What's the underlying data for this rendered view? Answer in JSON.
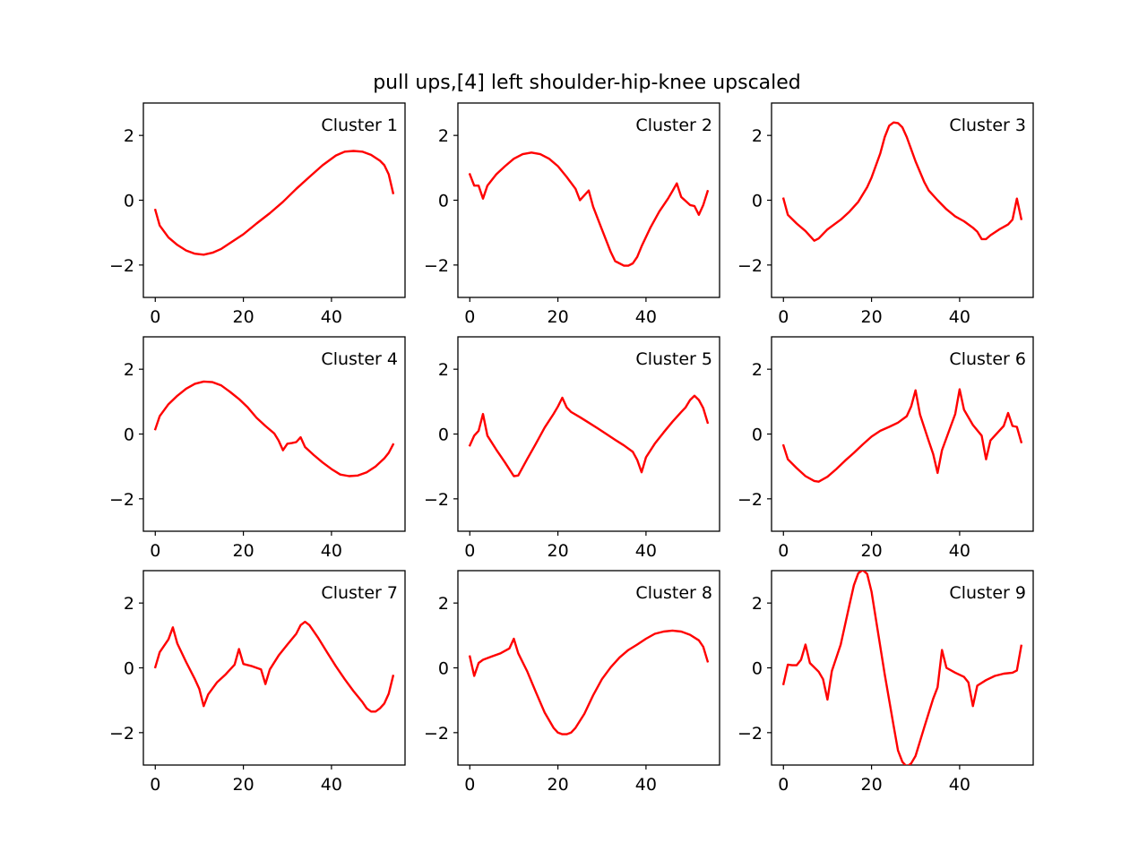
{
  "chart_data": [
    {
      "type": "line",
      "title": "pull ups,[4] left shoulder-hip-knee upscaled",
      "label": "Cluster 1",
      "color": "#ff0000",
      "xticks": [
        0,
        20,
        40
      ],
      "yticks": [
        -2,
        0,
        2
      ],
      "ytick_labels": [
        "−2",
        "0",
        "2"
      ],
      "xlim": [
        -2.7,
        56.7
      ],
      "ylim": [
        -3,
        3
      ],
      "points": [
        [
          0,
          -0.3
        ],
        [
          1,
          -0.78
        ],
        [
          3,
          -1.15
        ],
        [
          5,
          -1.38
        ],
        [
          7,
          -1.55
        ],
        [
          9,
          -1.65
        ],
        [
          11,
          -1.68
        ],
        [
          13,
          -1.62
        ],
        [
          15,
          -1.5
        ],
        [
          17,
          -1.32
        ],
        [
          20,
          -1.05
        ],
        [
          23,
          -0.72
        ],
        [
          26,
          -0.4
        ],
        [
          29,
          -0.05
        ],
        [
          32,
          0.35
        ],
        [
          35,
          0.72
        ],
        [
          38,
          1.08
        ],
        [
          41,
          1.38
        ],
        [
          43,
          1.5
        ],
        [
          45,
          1.52
        ],
        [
          47,
          1.5
        ],
        [
          49,
          1.4
        ],
        [
          51,
          1.22
        ],
        [
          52,
          1.08
        ],
        [
          53,
          0.8
        ],
        [
          54,
          0.22
        ]
      ]
    },
    {
      "type": "line",
      "label": "Cluster 2",
      "color": "#ff0000",
      "xticks": [
        0,
        20,
        40
      ],
      "yticks": [
        -2,
        0,
        2
      ],
      "ytick_labels": [
        "−2",
        "0",
        "2"
      ],
      "xlim": [
        -2.7,
        56.7
      ],
      "ylim": [
        -3,
        3
      ],
      "points": [
        [
          0,
          0.8
        ],
        [
          1,
          0.45
        ],
        [
          2,
          0.45
        ],
        [
          3,
          0.05
        ],
        [
          4,
          0.45
        ],
        [
          6,
          0.8
        ],
        [
          8,
          1.05
        ],
        [
          10,
          1.28
        ],
        [
          12,
          1.42
        ],
        [
          14,
          1.47
        ],
        [
          16,
          1.42
        ],
        [
          18,
          1.28
        ],
        [
          20,
          1.05
        ],
        [
          22,
          0.72
        ],
        [
          24,
          0.35
        ],
        [
          25,
          0.0
        ],
        [
          26,
          0.15
        ],
        [
          27,
          0.3
        ],
        [
          28,
          -0.2
        ],
        [
          30,
          -0.9
        ],
        [
          32,
          -1.6
        ],
        [
          33,
          -1.88
        ],
        [
          35,
          -2.02
        ],
        [
          36,
          -2.02
        ],
        [
          37,
          -1.95
        ],
        [
          38,
          -1.75
        ],
        [
          39,
          -1.42
        ],
        [
          41,
          -0.85
        ],
        [
          43,
          -0.35
        ],
        [
          45,
          0.05
        ],
        [
          46,
          0.28
        ],
        [
          47,
          0.52
        ],
        [
          48,
          0.1
        ],
        [
          50,
          -0.15
        ],
        [
          51,
          -0.18
        ],
        [
          52,
          -0.45
        ],
        [
          53,
          -0.15
        ],
        [
          54,
          0.28
        ]
      ]
    },
    {
      "type": "line",
      "label": "Cluster 3",
      "color": "#ff0000",
      "xticks": [
        0,
        20,
        40
      ],
      "yticks": [
        -2,
        0,
        2
      ],
      "ytick_labels": [
        "−2",
        "0",
        "2"
      ],
      "xlim": [
        -2.7,
        56.7
      ],
      "ylim": [
        -3,
        3
      ],
      "points": [
        [
          0,
          0.05
        ],
        [
          1,
          -0.45
        ],
        [
          3,
          -0.72
        ],
        [
          5,
          -0.95
        ],
        [
          7,
          -1.25
        ],
        [
          8,
          -1.18
        ],
        [
          10,
          -0.9
        ],
        [
          13,
          -0.6
        ],
        [
          15,
          -0.35
        ],
        [
          17,
          -0.05
        ],
        [
          19,
          0.4
        ],
        [
          20,
          0.7
        ],
        [
          22,
          1.45
        ],
        [
          23,
          1.95
        ],
        [
          24,
          2.3
        ],
        [
          25,
          2.4
        ],
        [
          26,
          2.38
        ],
        [
          27,
          2.25
        ],
        [
          28,
          1.95
        ],
        [
          30,
          1.2
        ],
        [
          32,
          0.55
        ],
        [
          33,
          0.3
        ],
        [
          35,
          0.0
        ],
        [
          37,
          -0.28
        ],
        [
          39,
          -0.5
        ],
        [
          41,
          -0.65
        ],
        [
          43,
          -0.85
        ],
        [
          44,
          -0.97
        ],
        [
          45,
          -1.2
        ],
        [
          46,
          -1.2
        ],
        [
          47,
          -1.08
        ],
        [
          49,
          -0.9
        ],
        [
          51,
          -0.75
        ],
        [
          52,
          -0.6
        ],
        [
          53,
          0.05
        ],
        [
          54,
          -0.58
        ]
      ]
    },
    {
      "type": "line",
      "label": "Cluster 4",
      "color": "#ff0000",
      "xticks": [
        0,
        20,
        40
      ],
      "yticks": [
        -2,
        0,
        2
      ],
      "ytick_labels": [
        "−2",
        "0",
        "2"
      ],
      "xlim": [
        -2.7,
        56.7
      ],
      "ylim": [
        -3,
        3
      ],
      "points": [
        [
          0,
          0.15
        ],
        [
          1,
          0.55
        ],
        [
          3,
          0.92
        ],
        [
          5,
          1.18
        ],
        [
          7,
          1.4
        ],
        [
          9,
          1.55
        ],
        [
          11,
          1.62
        ],
        [
          13,
          1.6
        ],
        [
          15,
          1.5
        ],
        [
          17,
          1.3
        ],
        [
          19,
          1.08
        ],
        [
          21,
          0.82
        ],
        [
          23,
          0.5
        ],
        [
          25,
          0.25
        ],
        [
          27,
          0.02
        ],
        [
          28,
          -0.2
        ],
        [
          29,
          -0.5
        ],
        [
          30,
          -0.3
        ],
        [
          31,
          -0.28
        ],
        [
          32,
          -0.25
        ],
        [
          33,
          -0.1
        ],
        [
          34,
          -0.4
        ],
        [
          36,
          -0.65
        ],
        [
          38,
          -0.88
        ],
        [
          40,
          -1.08
        ],
        [
          42,
          -1.25
        ],
        [
          44,
          -1.3
        ],
        [
          46,
          -1.28
        ],
        [
          48,
          -1.18
        ],
        [
          50,
          -1.0
        ],
        [
          52,
          -0.75
        ],
        [
          53,
          -0.58
        ],
        [
          54,
          -0.32
        ]
      ]
    },
    {
      "type": "line",
      "label": "Cluster 5",
      "color": "#ff0000",
      "xticks": [
        0,
        20,
        40
      ],
      "yticks": [
        -2,
        0,
        2
      ],
      "ytick_labels": [
        "−2",
        "0",
        "2"
      ],
      "xlim": [
        -2.7,
        56.7
      ],
      "ylim": [
        -3,
        3
      ],
      "points": [
        [
          0,
          -0.35
        ],
        [
          1,
          -0.05
        ],
        [
          2,
          0.1
        ],
        [
          3,
          0.62
        ],
        [
          4,
          -0.05
        ],
        [
          6,
          -0.48
        ],
        [
          8,
          -0.88
        ],
        [
          10,
          -1.3
        ],
        [
          11,
          -1.28
        ],
        [
          13,
          -0.78
        ],
        [
          15,
          -0.3
        ],
        [
          17,
          0.2
        ],
        [
          19,
          0.62
        ],
        [
          20,
          0.85
        ],
        [
          21,
          1.12
        ],
        [
          22,
          0.82
        ],
        [
          23,
          0.68
        ],
        [
          25,
          0.52
        ],
        [
          27,
          0.35
        ],
        [
          29,
          0.18
        ],
        [
          31,
          0.0
        ],
        [
          33,
          -0.18
        ],
        [
          35,
          -0.35
        ],
        [
          37,
          -0.55
        ],
        [
          38,
          -0.8
        ],
        [
          39,
          -1.18
        ],
        [
          40,
          -0.72
        ],
        [
          42,
          -0.3
        ],
        [
          44,
          0.05
        ],
        [
          46,
          0.38
        ],
        [
          48,
          0.68
        ],
        [
          49,
          0.82
        ],
        [
          50,
          1.05
        ],
        [
          51,
          1.18
        ],
        [
          52,
          1.05
        ],
        [
          53,
          0.8
        ],
        [
          54,
          0.35
        ]
      ]
    },
    {
      "type": "line",
      "label": "Cluster 6",
      "color": "#ff0000",
      "xticks": [
        0,
        20,
        40
      ],
      "yticks": [
        -2,
        0,
        2
      ],
      "ytick_labels": [
        "−2",
        "0",
        "2"
      ],
      "xlim": [
        -2.7,
        56.7
      ],
      "ylim": [
        -3,
        3
      ],
      "points": [
        [
          0,
          -0.35
        ],
        [
          1,
          -0.78
        ],
        [
          3,
          -1.05
        ],
        [
          5,
          -1.3
        ],
        [
          7,
          -1.45
        ],
        [
          8,
          -1.47
        ],
        [
          10,
          -1.32
        ],
        [
          12,
          -1.08
        ],
        [
          14,
          -0.82
        ],
        [
          16,
          -0.58
        ],
        [
          18,
          -0.32
        ],
        [
          20,
          -0.08
        ],
        [
          22,
          0.1
        ],
        [
          24,
          0.22
        ],
        [
          26,
          0.35
        ],
        [
          28,
          0.55
        ],
        [
          29,
          0.85
        ],
        [
          30,
          1.35
        ],
        [
          31,
          0.6
        ],
        [
          33,
          -0.22
        ],
        [
          34,
          -0.62
        ],
        [
          35,
          -1.2
        ],
        [
          36,
          -0.5
        ],
        [
          38,
          0.25
        ],
        [
          39,
          0.62
        ],
        [
          40,
          1.38
        ],
        [
          41,
          0.75
        ],
        [
          43,
          0.28
        ],
        [
          45,
          -0.05
        ],
        [
          46,
          -0.78
        ],
        [
          47,
          -0.2
        ],
        [
          49,
          0.1
        ],
        [
          50,
          0.25
        ],
        [
          51,
          0.65
        ],
        [
          52,
          0.25
        ],
        [
          53,
          0.22
        ],
        [
          54,
          -0.25
        ]
      ]
    },
    {
      "type": "line",
      "label": "Cluster 7",
      "color": "#ff0000",
      "xticks": [
        0,
        20,
        40
      ],
      "yticks": [
        -2,
        0,
        2
      ],
      "ytick_labels": [
        "−2",
        "0",
        "2"
      ],
      "xlim": [
        -2.7,
        56.7
      ],
      "ylim": [
        -3,
        3
      ],
      "points": [
        [
          0,
          0.02
        ],
        [
          1,
          0.48
        ],
        [
          3,
          0.88
        ],
        [
          4,
          1.25
        ],
        [
          5,
          0.75
        ],
        [
          7,
          0.18
        ],
        [
          9,
          -0.35
        ],
        [
          10,
          -0.65
        ],
        [
          11,
          -1.18
        ],
        [
          12,
          -0.82
        ],
        [
          14,
          -0.45
        ],
        [
          16,
          -0.2
        ],
        [
          18,
          0.1
        ],
        [
          19,
          0.58
        ],
        [
          20,
          0.12
        ],
        [
          22,
          0.05
        ],
        [
          24,
          -0.05
        ],
        [
          25,
          -0.5
        ],
        [
          26,
          -0.05
        ],
        [
          28,
          0.38
        ],
        [
          30,
          0.72
        ],
        [
          32,
          1.05
        ],
        [
          33,
          1.32
        ],
        [
          34,
          1.42
        ],
        [
          35,
          1.32
        ],
        [
          37,
          0.92
        ],
        [
          39,
          0.48
        ],
        [
          41,
          0.05
        ],
        [
          43,
          -0.35
        ],
        [
          45,
          -0.72
        ],
        [
          47,
          -1.05
        ],
        [
          48,
          -1.25
        ],
        [
          49,
          -1.35
        ],
        [
          50,
          -1.35
        ],
        [
          51,
          -1.25
        ],
        [
          52,
          -1.1
        ],
        [
          53,
          -0.8
        ],
        [
          54,
          -0.25
        ]
      ]
    },
    {
      "type": "line",
      "label": "Cluster 8",
      "color": "#ff0000",
      "xticks": [
        0,
        20,
        40
      ],
      "yticks": [
        -2,
        0,
        2
      ],
      "ytick_labels": [
        "−2",
        "0",
        "2"
      ],
      "xlim": [
        -2.7,
        56.7
      ],
      "ylim": [
        -3,
        3
      ],
      "points": [
        [
          0,
          0.35
        ],
        [
          1,
          -0.25
        ],
        [
          2,
          0.15
        ],
        [
          3,
          0.25
        ],
        [
          5,
          0.35
        ],
        [
          7,
          0.45
        ],
        [
          9,
          0.6
        ],
        [
          10,
          0.9
        ],
        [
          11,
          0.45
        ],
        [
          13,
          -0.1
        ],
        [
          15,
          -0.75
        ],
        [
          17,
          -1.38
        ],
        [
          19,
          -1.85
        ],
        [
          20,
          -2.0
        ],
        [
          21,
          -2.05
        ],
        [
          22,
          -2.05
        ],
        [
          23,
          -2.0
        ],
        [
          24,
          -1.85
        ],
        [
          26,
          -1.42
        ],
        [
          28,
          -0.85
        ],
        [
          30,
          -0.35
        ],
        [
          32,
          0.02
        ],
        [
          34,
          0.32
        ],
        [
          36,
          0.55
        ],
        [
          38,
          0.72
        ],
        [
          40,
          0.9
        ],
        [
          42,
          1.05
        ],
        [
          44,
          1.12
        ],
        [
          46,
          1.15
        ],
        [
          48,
          1.12
        ],
        [
          50,
          1.02
        ],
        [
          52,
          0.85
        ],
        [
          53,
          0.65
        ],
        [
          54,
          0.2
        ]
      ]
    },
    {
      "type": "line",
      "label": "Cluster 9",
      "color": "#ff0000",
      "xticks": [
        0,
        20,
        40
      ],
      "yticks": [
        -2,
        0,
        2
      ],
      "ytick_labels": [
        "−2",
        "0",
        "2"
      ],
      "xlim": [
        -2.7,
        56.7
      ],
      "ylim": [
        -3,
        3
      ],
      "points": [
        [
          0,
          -0.5
        ],
        [
          1,
          0.1
        ],
        [
          2,
          0.08
        ],
        [
          3,
          0.08
        ],
        [
          4,
          0.25
        ],
        [
          5,
          0.72
        ],
        [
          6,
          0.15
        ],
        [
          8,
          -0.12
        ],
        [
          9,
          -0.35
        ],
        [
          10,
          -0.98
        ],
        [
          11,
          -0.1
        ],
        [
          13,
          0.72
        ],
        [
          15,
          1.95
        ],
        [
          16,
          2.55
        ],
        [
          17,
          2.92
        ],
        [
          18,
          3.02
        ],
        [
          19,
          2.9
        ],
        [
          20,
          2.35
        ],
        [
          21,
          1.5
        ],
        [
          23,
          -0.2
        ],
        [
          25,
          -1.78
        ],
        [
          26,
          -2.55
        ],
        [
          27,
          -2.9
        ],
        [
          28,
          -3.05
        ],
        [
          29,
          -2.95
        ],
        [
          30,
          -2.72
        ],
        [
          32,
          -1.82
        ],
        [
          34,
          -0.95
        ],
        [
          35,
          -0.6
        ],
        [
          36,
          0.55
        ],
        [
          37,
          0.0
        ],
        [
          39,
          -0.15
        ],
        [
          41,
          -0.28
        ],
        [
          42,
          -0.45
        ],
        [
          43,
          -1.18
        ],
        [
          44,
          -0.55
        ],
        [
          46,
          -0.38
        ],
        [
          48,
          -0.25
        ],
        [
          50,
          -0.18
        ],
        [
          52,
          -0.15
        ],
        [
          53,
          -0.08
        ],
        [
          54,
          0.68
        ]
      ]
    }
  ]
}
